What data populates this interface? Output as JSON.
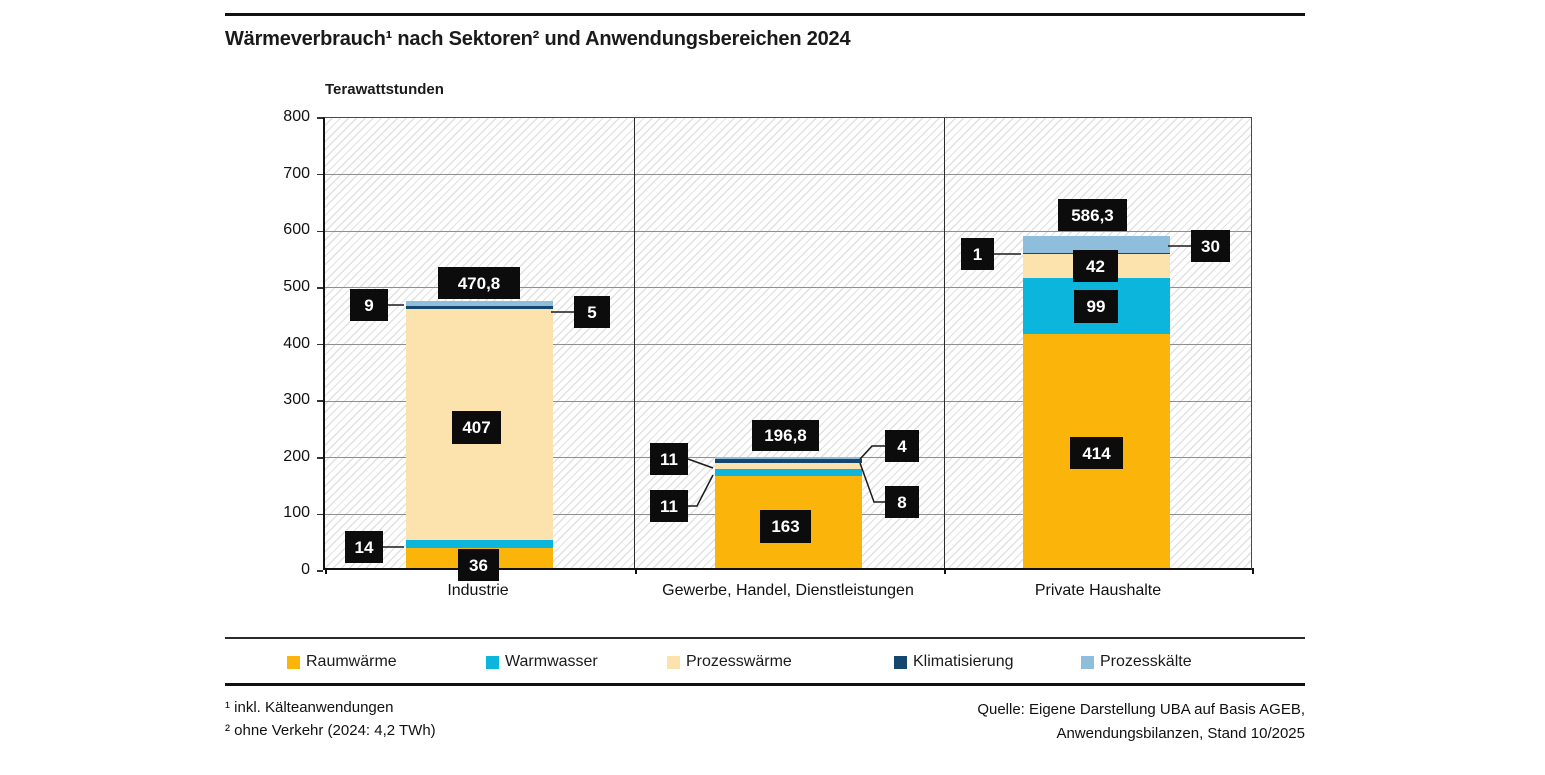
{
  "header": {
    "title": "Wärmeverbrauch¹ nach Sektoren² und Anwendungsbereichen 2024"
  },
  "chart_data": {
    "type": "bar",
    "stacked": true,
    "title": "Wärmeverbrauch¹ nach Sektoren² und Anwendungsbereichen 2024",
    "ylabel": "Terawattstunden",
    "unit": "TWh",
    "ylim": [
      0,
      800
    ],
    "ytick_step": 100,
    "y_ticks": [
      800,
      700,
      600,
      500,
      400,
      300,
      200,
      100,
      0
    ],
    "grid": true,
    "legend_position": "bottom",
    "background_hatch": true,
    "categories": [
      "Industrie",
      "Gewerbe, Handel, Dienstleistungen",
      "Private Haushalte"
    ],
    "series": [
      {
        "name": "Raumwärme",
        "color": "#FAB40A",
        "values": [
          36,
          163,
          414
        ]
      },
      {
        "name": "Warmwasser",
        "color": "#0CB5DC",
        "values": [
          14,
          11,
          99
        ]
      },
      {
        "name": "Prozesswärme",
        "color": "#FCE3AD",
        "values": [
          407,
          11,
          42
        ]
      },
      {
        "name": "Klimatisierung",
        "color": "#15466E",
        "values": [
          5,
          8,
          1
        ]
      },
      {
        "name": "Prozesskälte",
        "color": "#8FBEDC",
        "values": [
          9,
          4,
          30
        ]
      }
    ],
    "totals": [
      470.8,
      196.8,
      586.3
    ]
  },
  "annotations": {
    "industrie": {
      "total": "470,8",
      "prozesskaelte": "9",
      "klimatisierung": "5",
      "prozesswaerme": "407",
      "warmwasser": "14",
      "raumwaerme": "36"
    },
    "ghd": {
      "total": "196,8",
      "prozesswaerme": "11",
      "warmwasser": "11",
      "prozesskaelte": "4",
      "klimatisierung": "8",
      "raumwaerme": "163"
    },
    "haushalte": {
      "total": "586,3",
      "klimatisierung": "1",
      "prozesskaelte": "30",
      "prozesswaerme": "42",
      "warmwasser": "99",
      "raumwaerme": "414"
    }
  },
  "footnotes": {
    "line1": "¹ inkl. Kälteanwendungen",
    "line2": "² ohne Verkehr (2024: 4,2 TWh)"
  },
  "source": {
    "line1": "Quelle: Eigene Darstellung UBA auf Basis AGEB,",
    "line2": "Anwendungsbilanzen, Stand 10/2025"
  }
}
